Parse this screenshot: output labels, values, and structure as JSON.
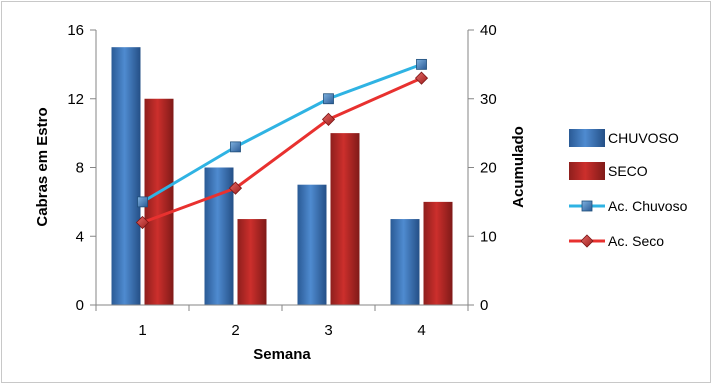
{
  "chart_data": {
    "type": "bar+line",
    "categories": [
      "1",
      "2",
      "3",
      "4"
    ],
    "xlabel": "Semana",
    "ylabel_left": "Cabras em Estro",
    "ylabel_right": "Acumulado",
    "ylim_left": [
      0,
      16
    ],
    "ylim_right": [
      0,
      40
    ],
    "yticks_left": [
      "0",
      "4",
      "8",
      "12",
      "16"
    ],
    "yticks_right": [
      "0",
      "10",
      "20",
      "30",
      "40"
    ],
    "grid": false,
    "legend_position": "right",
    "bar_series": [
      {
        "name": "CHUVOSO",
        "values": [
          15,
          8,
          7,
          5
        ],
        "color": "#4f81bd"
      },
      {
        "name": "SECO",
        "values": [
          12,
          5,
          10,
          6
        ],
        "color": "#c0504d"
      }
    ],
    "line_series": [
      {
        "name": "Ac. Chuvoso",
        "values": [
          15,
          23,
          30,
          35
        ],
        "color": "#2fb3e3",
        "marker": "square",
        "axis": "right"
      },
      {
        "name": "Ac. Seco",
        "values": [
          12,
          17,
          27,
          33
        ],
        "color": "#e8312f",
        "marker": "diamond",
        "axis": "right"
      }
    ]
  }
}
